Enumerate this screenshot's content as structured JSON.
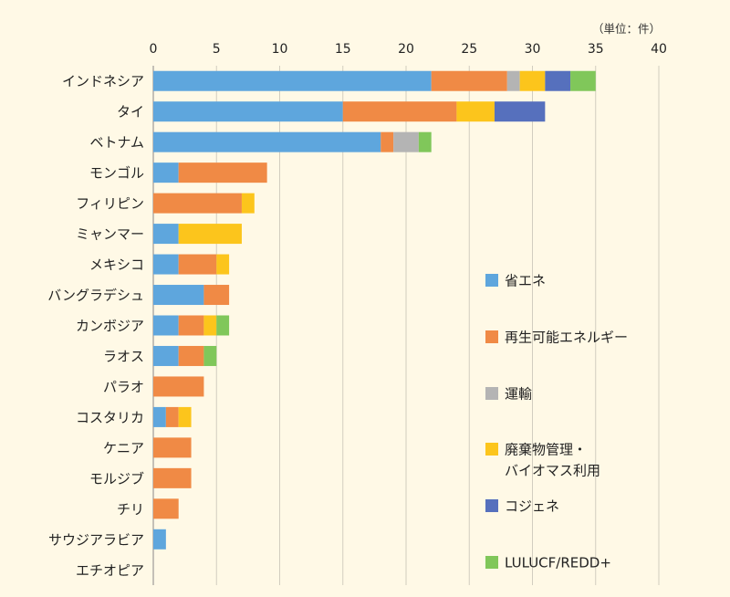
{
  "chart_data": {
    "type": "bar",
    "orientation": "horizontal",
    "stacked": true,
    "unit_label": "（単位：件）",
    "xlim": [
      0,
      40
    ],
    "xticks": [
      0,
      5,
      10,
      15,
      20,
      25,
      30,
      35,
      40
    ],
    "grid": true,
    "legend_position": "right",
    "categories": [
      "インドネシア",
      "タイ",
      "ベトナム",
      "モンゴル",
      "フィリピン",
      "ミャンマー",
      "メキシコ",
      "バングラデシュ",
      "カンボジア",
      "ラオス",
      "パラオ",
      "コスタリカ",
      "ケニア",
      "モルジブ",
      "チリ",
      "サウジアラビア",
      "エチオピア"
    ],
    "series": [
      {
        "name": "省エネ",
        "color": "#5ea6dd",
        "values": [
          22,
          15,
          18,
          2,
          0,
          2,
          2,
          4,
          2,
          2,
          0,
          1,
          0,
          0,
          0,
          1,
          0
        ]
      },
      {
        "name": "再生可能エネルギー",
        "color": "#f08a45",
        "values": [
          6,
          9,
          1,
          7,
          7,
          0,
          3,
          2,
          2,
          2,
          4,
          1,
          3,
          3,
          2,
          0,
          0
        ]
      },
      {
        "name": "運輸",
        "color": "#b4b4b4",
        "values": [
          1,
          0,
          2,
          0,
          0,
          0,
          0,
          0,
          0,
          0,
          0,
          0,
          0,
          0,
          0,
          0,
          0
        ]
      },
      {
        "name": "廃棄物管理・\nバイオマス利用",
        "color": "#fcc51c",
        "values": [
          2,
          3,
          0,
          0,
          1,
          5,
          1,
          0,
          1,
          0,
          0,
          1,
          0,
          0,
          0,
          0,
          0
        ]
      },
      {
        "name": "コジェネ",
        "color": "#5670bd",
        "values": [
          2,
          4,
          0,
          0,
          0,
          0,
          0,
          0,
          0,
          0,
          0,
          0,
          0,
          0,
          0,
          0,
          0
        ]
      },
      {
        "name": "LULUCF/REDD+",
        "color": "#80c75a",
        "values": [
          2,
          0,
          1,
          0,
          0,
          0,
          0,
          0,
          1,
          1,
          0,
          0,
          0,
          0,
          0,
          0,
          0
        ]
      }
    ]
  }
}
